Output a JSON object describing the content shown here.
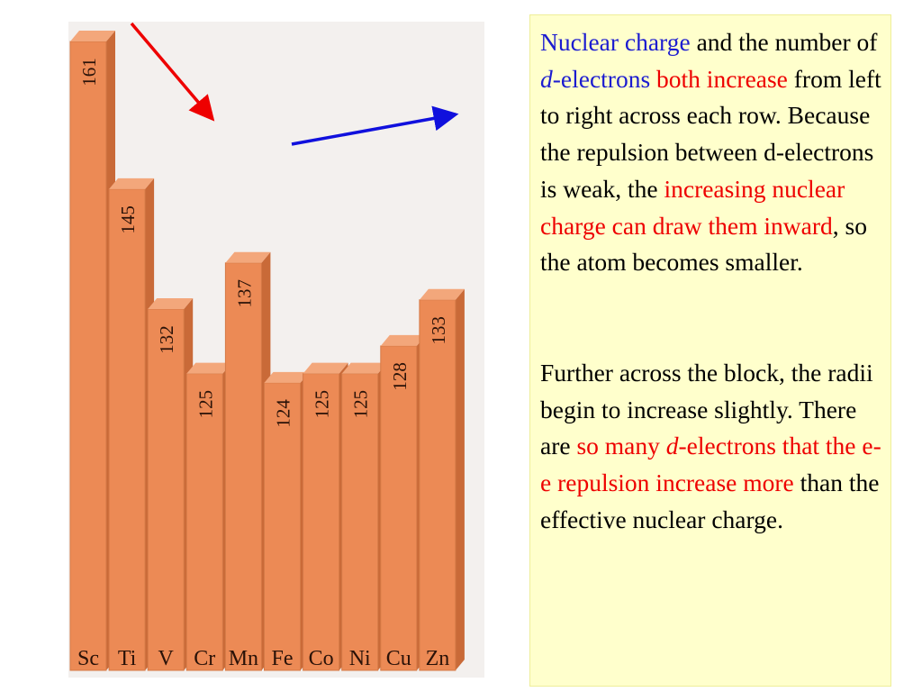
{
  "chart_data": {
    "type": "bar",
    "categories": [
      "Sc",
      "Ti",
      "V",
      "Cr",
      "Mn",
      "Fe",
      "Co",
      "Ni",
      "Cu",
      "Zn"
    ],
    "values": [
      161,
      145,
      132,
      125,
      137,
      124,
      125,
      125,
      128,
      133
    ],
    "title": "",
    "xlabel": "",
    "ylabel": "",
    "grid": false,
    "bar_color": "#ec8a55",
    "bar_top_color": "#f3a77b",
    "bar_side_color": "#c96a38",
    "arrows": [
      {
        "color": "#ee0000",
        "from": "Sc",
        "to": "Cr",
        "direction": "down"
      },
      {
        "color": "#1010dd",
        "from": "Fe",
        "to": "Zn",
        "direction": "up"
      }
    ]
  },
  "explanation": {
    "p1": [
      {
        "text": "Nuclear charge",
        "style": "blue"
      },
      {
        "text": " and the number of ",
        "style": "plain"
      },
      {
        "text": "d",
        "style": "blue-italic"
      },
      {
        "text": "-electrons",
        "style": "blue"
      },
      {
        "text": " both increase",
        "style": "red"
      },
      {
        "text": " from left to right across each row. Because the repulsion between d-electrons is weak, the ",
        "style": "plain"
      },
      {
        "text": "increasing nuclear charge can draw them inward",
        "style": "red"
      },
      {
        "text": ", so the atom becomes smaller.",
        "style": "plain"
      }
    ],
    "p2": [
      {
        "text": "Further across the block, the radii begin to increase slightly. There are ",
        "style": "plain"
      },
      {
        "text": "so many ",
        "style": "red"
      },
      {
        "text": "d",
        "style": "red-italic"
      },
      {
        "text": "-electrons that the e-e repulsion increase more",
        "style": "red"
      },
      {
        "text": " than the effective nuclear charge.",
        "style": "plain"
      }
    ]
  }
}
